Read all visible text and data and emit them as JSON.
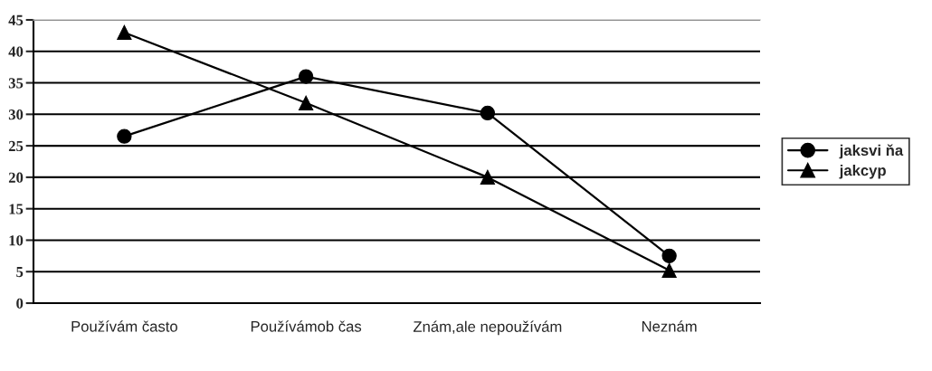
{
  "chart_data": {
    "type": "line",
    "categories": [
      "Používám často",
      "Používámob čas",
      "Znám,ale nepoužívám",
      "Neznám"
    ],
    "series": [
      {
        "name": "jaksvi ňa",
        "color": "#000000",
        "marker": "circle",
        "values": [
          26.5,
          36,
          30.2,
          7.5
        ]
      },
      {
        "name": "jakcyp",
        "color": "#000000",
        "marker": "triangle",
        "values": [
          43,
          31.8,
          20,
          5.2
        ]
      }
    ],
    "ylim": [
      0,
      45
    ],
    "yticks": [
      0,
      5,
      10,
      15,
      20,
      25,
      30,
      35,
      40,
      45
    ],
    "grid": "y",
    "legend": "right",
    "line_style": "solid"
  }
}
